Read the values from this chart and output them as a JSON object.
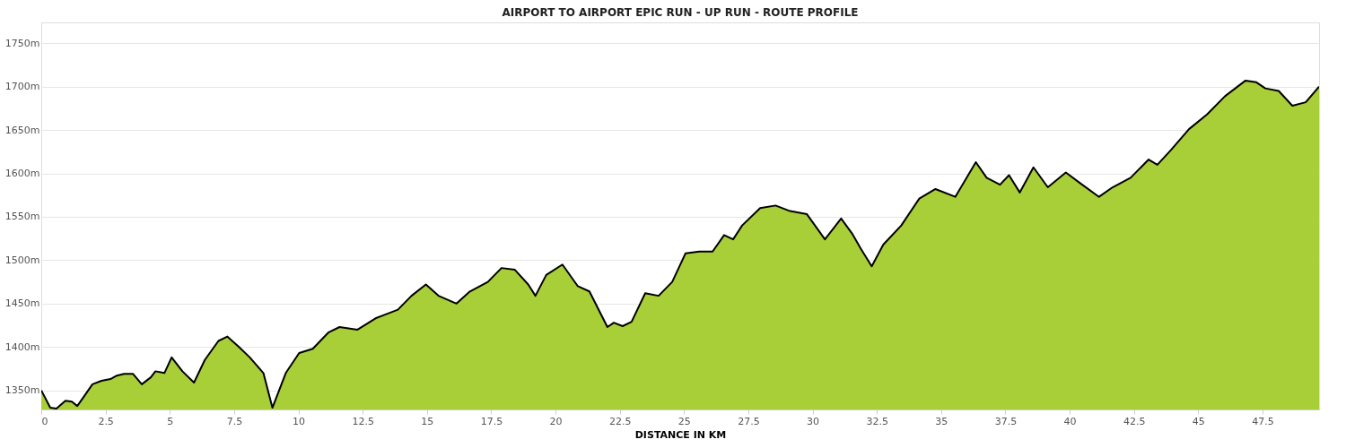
{
  "chart_data": {
    "type": "area",
    "title": "AIRPORT TO AIRPORT EPIC RUN - UP RUN - ROUTE PROFILE",
    "xlabel": "DISTANCE IN KM",
    "x": [
      0,
      0.35,
      0.59,
      0.94,
      1.19,
      1.4,
      1.64,
      1.99,
      2.34,
      2.69,
      2.94,
      3.22,
      3.57,
      3.91,
      4.26,
      4.44,
      4.79,
      5.07,
      5.49,
      5.94,
      6.36,
      6.89,
      7.24,
      7.69,
      8.11,
      8.64,
      8.99,
      9.51,
      10.03,
      10.56,
      11.18,
      11.6,
      12.3,
      13.0,
      13.35,
      13.87,
      14.4,
      14.96,
      15.45,
      16.15,
      16.67,
      17.37,
      17.9,
      18.42,
      18.94,
      19.22,
      19.64,
      20.27,
      20.87,
      21.32,
      22.02,
      22.27,
      22.61,
      22.96,
      23.49,
      24.01,
      24.54,
      25.06,
      25.59,
      26.11,
      26.56,
      26.91,
      27.26,
      27.96,
      28.56,
      29.08,
      29.78,
      30.48,
      31.11,
      31.53,
      31.88,
      32.3,
      32.75,
      33.45,
      34.15,
      34.78,
      35.55,
      36.35,
      36.77,
      37.29,
      37.64,
      38.06,
      38.59,
      39.15,
      39.85,
      40.44,
      41.14,
      41.67,
      42.37,
      43.07,
      43.41,
      43.94,
      44.64,
      45.34,
      46.04,
      46.84,
      47.26,
      47.61,
      48.13,
      48.66,
      49.18,
      49.7
    ],
    "series": [
      {
        "color": "#a8cf38",
        "values": [
          1350,
          1330,
          1329,
          1338,
          1337,
          1332,
          1342,
          1357,
          1361,
          1363,
          1367,
          1369,
          1369,
          1357,
          1365,
          1372,
          1370,
          1388,
          1372,
          1359,
          1385,
          1407,
          1412,
          1400,
          1388,
          1370,
          1330,
          1370,
          1393,
          1398,
          1417,
          1423,
          1420,
          1433,
          1437,
          1443,
          1459,
          1472,
          1459,
          1450,
          1464,
          1475,
          1491,
          1489,
          1472,
          1459,
          1483,
          1495,
          1470,
          1464,
          1423,
          1428,
          1424,
          1429,
          1462,
          1459,
          1475,
          1508,
          1510,
          1510,
          1529,
          1524,
          1540,
          1560,
          1563,
          1557,
          1553,
          1524,
          1548,
          1531,
          1513,
          1493,
          1518,
          1540,
          1571,
          1582,
          1573,
          1613,
          1595,
          1587,
          1598,
          1578,
          1607,
          1584,
          1601,
          1588,
          1573,
          1584,
          1595,
          1616,
          1610,
          1627,
          1651,
          1668,
          1689,
          1707,
          1705,
          1698,
          1695,
          1678,
          1682,
          1700
        ]
      }
    ],
    "xlim": [
      0,
      49.7
    ],
    "ylim": [
      1328,
      1774
    ],
    "xticks": [
      0,
      2.5,
      5,
      7.5,
      10,
      12.5,
      15,
      17.5,
      20,
      22.5,
      25,
      27.5,
      30,
      32.5,
      35,
      37.5,
      40,
      42.5,
      45,
      47.5
    ],
    "yticks": [
      {
        "value": 1350,
        "label": "1350m"
      },
      {
        "value": 1400,
        "label": "1400m"
      },
      {
        "value": 1450,
        "label": "1450m"
      },
      {
        "value": 1500,
        "label": "1500m"
      },
      {
        "value": 1550,
        "label": "1550m"
      },
      {
        "value": 1600,
        "label": "1600m"
      },
      {
        "value": 1650,
        "label": "1650m"
      },
      {
        "value": 1700,
        "label": "1700m"
      },
      {
        "value": 1750,
        "label": "1750m"
      }
    ],
    "grid": "y"
  }
}
